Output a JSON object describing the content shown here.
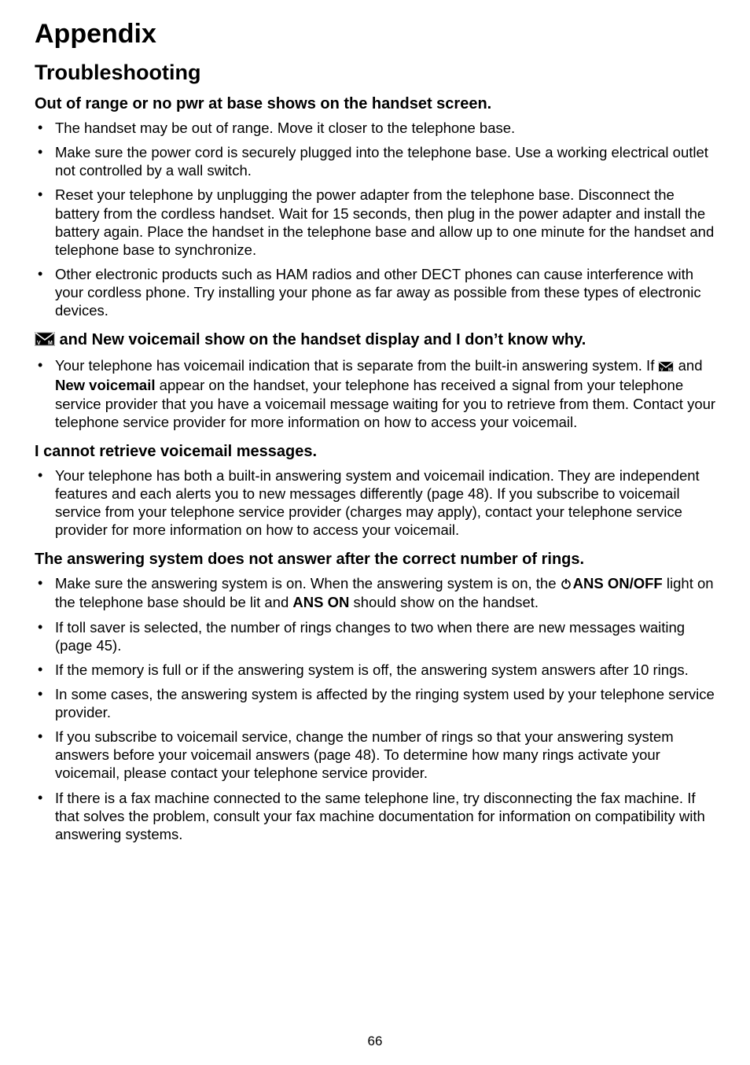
{
  "page_number": "66",
  "title": "Appendix",
  "section": "Troubleshooting",
  "colors": {
    "text": "#000000",
    "background": "#ffffff"
  },
  "icons": {
    "voicemail_envelope": "voicemail-envelope-icon",
    "power": "power-icon"
  },
  "blocks": [
    {
      "heading": "Out of range or no pwr at base shows on the handset screen.",
      "heading_has_icon": false,
      "items": [
        {
          "text": "The handset may be out of range. Move it closer to the telephone base."
        },
        {
          "text": "Make sure the power cord is securely plugged into the telephone base. Use a working electrical outlet not controlled by a wall switch."
        },
        {
          "text": "Reset your telephone by unplugging the power adapter from the telephone base. Disconnect the battery from the cordless handset. Wait for 15 seconds, then plug in the power adapter and install the battery again. Place the handset in the telephone base and allow up to one minute for the handset and telephone base to synchronize."
        },
        {
          "text": "Other electronic products such as HAM radios and other DECT phones can cause interference with your cordless phone. Try installing your phone as far away as possible from these types of electronic devices."
        }
      ]
    },
    {
      "heading_has_icon": true,
      "heading": " and New voicemail show on the handset display and I don’t know why.",
      "items": [
        {
          "parts": [
            {
              "t": "Your telephone has voicemail indication that is separate from the built-in answering system. If "
            },
            {
              "icon": "voicemail"
            },
            {
              "t": " and "
            },
            {
              "b": "New voicemail"
            },
            {
              "t": " appear on the handset, your telephone has received a signal from your telephone service provider that you have a voicemail message waiting for you to retrieve from them. Contact your telephone service provider for more information on how to access your voicemail."
            }
          ]
        }
      ]
    },
    {
      "heading": "I cannot retrieve voicemail messages.",
      "heading_has_icon": false,
      "items": [
        {
          "text": "Your telephone has both a built-in answering system and voicemail indication. They are independent features and each alerts you to new messages differently (page 48). If you subscribe to voicemail service from your telephone service provider (charges may apply), contact your telephone service provider for more information on how to access your voicemail."
        }
      ]
    },
    {
      "heading": "The answering system does not answer after the correct number of rings.",
      "heading_has_icon": false,
      "items": [
        {
          "parts": [
            {
              "t": "Make sure the answering system is on. When the answering system is on, the "
            },
            {
              "icon": "power"
            },
            {
              "b": "ANS ON/OFF"
            },
            {
              "t": " light on the telephone base should be lit and "
            },
            {
              "b": "ANS ON"
            },
            {
              "t": " should show on the handset."
            }
          ]
        },
        {
          "text": "If toll saver is selected, the number of rings changes to two when there are new messages waiting (page 45)."
        },
        {
          "text": "If the memory is full or if the answering system is off, the answering system answers after 10 rings."
        },
        {
          "text": "In some cases, the answering system is affected by the ringing system used by your telephone service provider."
        },
        {
          "text": "If you subscribe to voicemail service, change the number of rings so that your answering system answers before your voicemail answers (page 48). To determine how many rings activate your voicemail, please contact your telephone service provider."
        },
        {
          "text": "If there is a fax machine connected to the same telephone line, try disconnecting the fax machine. If that solves the problem, consult your fax machine documentation for information on compatibility with answering systems."
        }
      ]
    }
  ]
}
